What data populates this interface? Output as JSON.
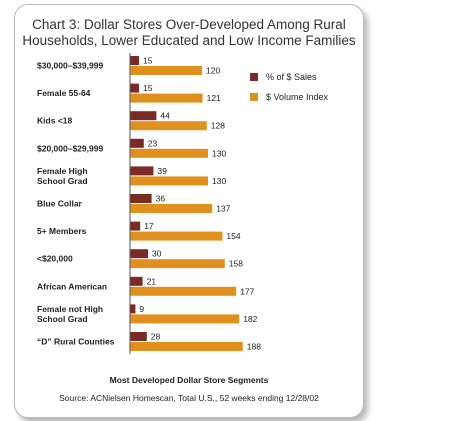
{
  "chart_data": {
    "type": "bar",
    "orientation": "horizontal",
    "title": "Chart 3: Dollar Stores Over-Developed Among Rural Households, Lower Educated and Low Income Families",
    "title_lines": [
      "Chart 3: Dollar Stores Over-Developed Among Rural",
      "Households, Lower Educated and Low Income Families"
    ],
    "xlabel": "Most Developed Dollar Store Segments",
    "ylabel": "",
    "source": "Source: ACNielsen Homescan, Total U.S., 52 weeks ending 12/28/02",
    "categories": [
      {
        "lines": [
          "$30,000–$39,999"
        ]
      },
      {
        "lines": [
          "Female 55-64"
        ]
      },
      {
        "lines": [
          "Kids <18"
        ]
      },
      {
        "lines": [
          "$20,000–$29,999"
        ]
      },
      {
        "lines": [
          "Female High",
          "School Grad"
        ]
      },
      {
        "lines": [
          "Blue Collar"
        ]
      },
      {
        "lines": [
          "5+ Members"
        ]
      },
      {
        "lines": [
          "<$20,000"
        ]
      },
      {
        "lines": [
          "African American"
        ]
      },
      {
        "lines": [
          "Female not High",
          "School Grad"
        ]
      },
      {
        "lines": [
          "“D” Rural Counties"
        ]
      }
    ],
    "series": [
      {
        "name": "% of $ Sales",
        "color": "#7a2b26",
        "values": [
          15,
          15,
          44,
          23,
          39,
          36,
          17,
          30,
          21,
          9,
          28
        ]
      },
      {
        "name": "$ Volume Index",
        "color": "#e0901f",
        "values": [
          120,
          121,
          128,
          130,
          130,
          137,
          154,
          158,
          177,
          182,
          188
        ]
      }
    ],
    "xlim": [
      0,
      200
    ],
    "legend": "top-right",
    "grid": false
  }
}
